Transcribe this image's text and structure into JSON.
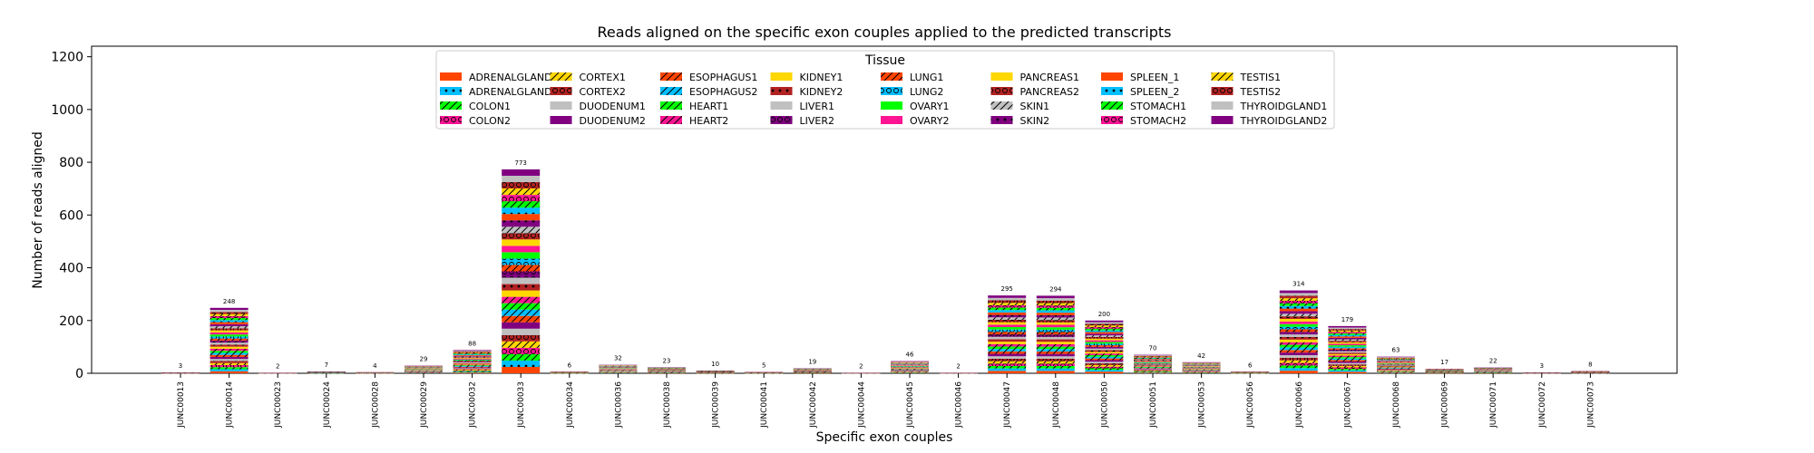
{
  "chart_data": {
    "type": "bar",
    "title": "Reads aligned on the specific exon couples applied to the predicted transcripts",
    "xlabel": "Specific exon couples",
    "ylabel": "Number of reads aligned",
    "ylim": [
      0,
      1240
    ],
    "yticks": [
      0,
      200,
      400,
      600,
      800,
      1000,
      1200
    ],
    "grid": false,
    "stacked": true,
    "legend": {
      "title": "Tissue",
      "placement": "top-center",
      "columns": 8,
      "entries": [
        {
          "name": "ADRENALGLAND1",
          "color": "#ff4500",
          "hatch": "none"
        },
        {
          "name": "ADRENALGLAND2",
          "color": "#00bfff",
          "hatch": "dots"
        },
        {
          "name": "COLON1",
          "color": "#00ff00",
          "hatch": "diag"
        },
        {
          "name": "COLON2",
          "color": "#ff1493",
          "hatch": "circles"
        },
        {
          "name": "CORTEX1",
          "color": "#ffd700",
          "hatch": "diag"
        },
        {
          "name": "CORTEX2",
          "color": "#b22222",
          "hatch": "circles"
        },
        {
          "name": "DUODENUM1",
          "color": "#c0c0c0",
          "hatch": "none"
        },
        {
          "name": "DUODENUM2",
          "color": "#800080",
          "hatch": "none"
        },
        {
          "name": "ESOPHAGUS1",
          "color": "#ff4500",
          "hatch": "diag"
        },
        {
          "name": "ESOPHAGUS2",
          "color": "#00bfff",
          "hatch": "diag"
        },
        {
          "name": "HEART1",
          "color": "#00ff00",
          "hatch": "diag"
        },
        {
          "name": "HEART2",
          "color": "#ff1493",
          "hatch": "diag"
        },
        {
          "name": "KIDNEY1",
          "color": "#ffd700",
          "hatch": "none"
        },
        {
          "name": "KIDNEY2",
          "color": "#b22222",
          "hatch": "dots"
        },
        {
          "name": "LIVER1",
          "color": "#c0c0c0",
          "hatch": "none"
        },
        {
          "name": "LIVER2",
          "color": "#800080",
          "hatch": "circles"
        },
        {
          "name": "LUNG1",
          "color": "#ff4500",
          "hatch": "diag"
        },
        {
          "name": "LUNG2",
          "color": "#00bfff",
          "hatch": "circles"
        },
        {
          "name": "OVARY1",
          "color": "#00ff00",
          "hatch": "none"
        },
        {
          "name": "OVARY2",
          "color": "#ff1493",
          "hatch": "none"
        },
        {
          "name": "PANCREAS1",
          "color": "#ffd700",
          "hatch": "none"
        },
        {
          "name": "PANCREAS2",
          "color": "#b22222",
          "hatch": "circles"
        },
        {
          "name": "SKIN1",
          "color": "#c0c0c0",
          "hatch": "diag"
        },
        {
          "name": "SKIN2",
          "color": "#800080",
          "hatch": "dots"
        },
        {
          "name": "SPLEEN_1",
          "color": "#ff4500",
          "hatch": "none"
        },
        {
          "name": "SPLEEN_2",
          "color": "#00bfff",
          "hatch": "dots"
        },
        {
          "name": "STOMACH1",
          "color": "#00ff00",
          "hatch": "diag"
        },
        {
          "name": "STOMACH2",
          "color": "#ff1493",
          "hatch": "circles"
        },
        {
          "name": "TESTIS1",
          "color": "#ffd700",
          "hatch": "diag"
        },
        {
          "name": "TESTIS2",
          "color": "#b22222",
          "hatch": "circles"
        },
        {
          "name": "THYROIDGLAND1",
          "color": "#c0c0c0",
          "hatch": "none"
        },
        {
          "name": "THYROIDGLAND2",
          "color": "#800080",
          "hatch": "none"
        }
      ]
    },
    "categories": [
      "JUNC00013",
      "JUNC00014",
      "JUNC00023",
      "JUNC00024",
      "JUNC00028",
      "JUNC00029",
      "JUNC00032",
      "JUNC00033",
      "JUNC00034",
      "JUNC00036",
      "JUNC00038",
      "JUNC00039",
      "JUNC00041",
      "JUNC00042",
      "JUNC00044",
      "JUNC00045",
      "JUNC00046",
      "JUNC00047",
      "JUNC00048",
      "JUNC00050",
      "JUNC00051",
      "JUNC00053",
      "JUNC00056",
      "JUNC00066",
      "JUNC00067",
      "JUNC00068",
      "JUNC00069",
      "JUNC00071",
      "JUNC00072",
      "JUNC00073"
    ],
    "totals": [
      3,
      248,
      2,
      7,
      4,
      29,
      88,
      773,
      6,
      32,
      23,
      10,
      5,
      19,
      2,
      46,
      2,
      295,
      294,
      200,
      70,
      42,
      6,
      314,
      179,
      63,
      17,
      22,
      3,
      8
    ]
  }
}
